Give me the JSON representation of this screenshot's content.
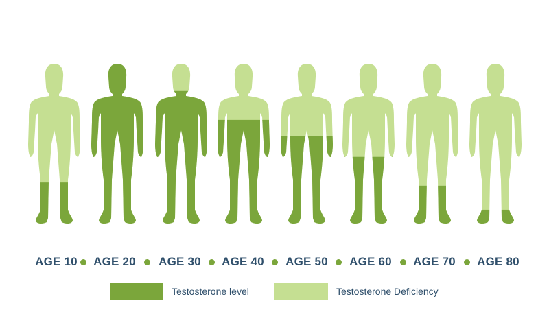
{
  "colors": {
    "level": "#7ba63b",
    "deficiency": "#c5df92",
    "text": "#2f4f6b"
  },
  "figures": [
    {
      "age": "AGE 10",
      "level_fraction": 0.26
    },
    {
      "age": "AGE 20",
      "level_fraction": 1.0
    },
    {
      "age": "AGE 30",
      "level_fraction": 0.83
    },
    {
      "age": "AGE 40",
      "level_fraction": 0.65
    },
    {
      "age": "AGE 50",
      "level_fraction": 0.55
    },
    {
      "age": "AGE 60",
      "level_fraction": 0.42
    },
    {
      "age": "AGE 70",
      "level_fraction": 0.24
    },
    {
      "age": "AGE 80",
      "level_fraction": 0.09
    }
  ],
  "legend": {
    "level_label": "Testosterone level",
    "deficiency_label": "Testosterone Deficiency"
  }
}
